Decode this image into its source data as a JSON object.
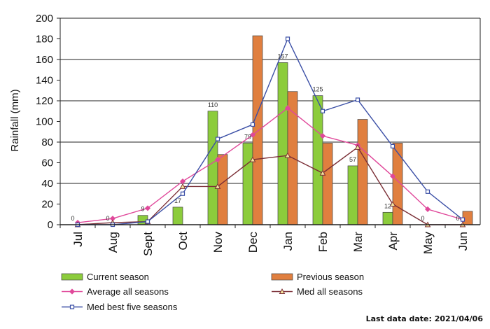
{
  "chart_data": {
    "type": "bar",
    "categories": [
      "Jul",
      "Aug",
      "Sept",
      "Oct",
      "Nov",
      "Dec",
      "Jan",
      "Feb",
      "Mar",
      "Apr",
      "May",
      "Jun"
    ],
    "ylabel": "Rainfall (mm)",
    "xlabel": "",
    "ylim": [
      0,
      200
    ],
    "yticks": [
      0,
      20,
      40,
      60,
      80,
      100,
      120,
      140,
      160,
      180,
      200
    ],
    "grid": "horizontal major lines at every 40 mm",
    "legend_position": "bottom",
    "series": [
      {
        "name": "Current season",
        "kind": "bar",
        "color": "#8ccc3c",
        "values": [
          0,
          0,
          9,
          17,
          110,
          79,
          157,
          125,
          57,
          12,
          0,
          0
        ],
        "data_labels": [
          "0",
          "0",
          "9",
          "17",
          "110",
          "79",
          "157",
          "125",
          "57",
          "12",
          "0",
          "0"
        ]
      },
      {
        "name": "Previous season",
        "kind": "bar",
        "color": "#e07f3f",
        "values": [
          0,
          0,
          0,
          0,
          68,
          183,
          129,
          79,
          102,
          79,
          0,
          13
        ]
      },
      {
        "name": "Average all seasons",
        "kind": "line",
        "color": "#e0489a",
        "marker": "diamond",
        "values": [
          2,
          6,
          16,
          42,
          63,
          87,
          113,
          86,
          77,
          47,
          15,
          5
        ]
      },
      {
        "name": "Med all seasons",
        "kind": "line",
        "color": "#7a2e35",
        "marker": "triangle",
        "values": [
          0,
          2,
          3,
          37,
          37,
          63,
          67,
          50,
          75,
          20,
          0,
          0
        ]
      },
      {
        "name": "Med best five seasons",
        "kind": "line",
        "color": "#3b4fa6",
        "marker": "square",
        "values": [
          0,
          0,
          3,
          30,
          83,
          97,
          180,
          110,
          121,
          76,
          32,
          5
        ]
      }
    ],
    "footnote": "Last data date: 2021/04/06"
  }
}
